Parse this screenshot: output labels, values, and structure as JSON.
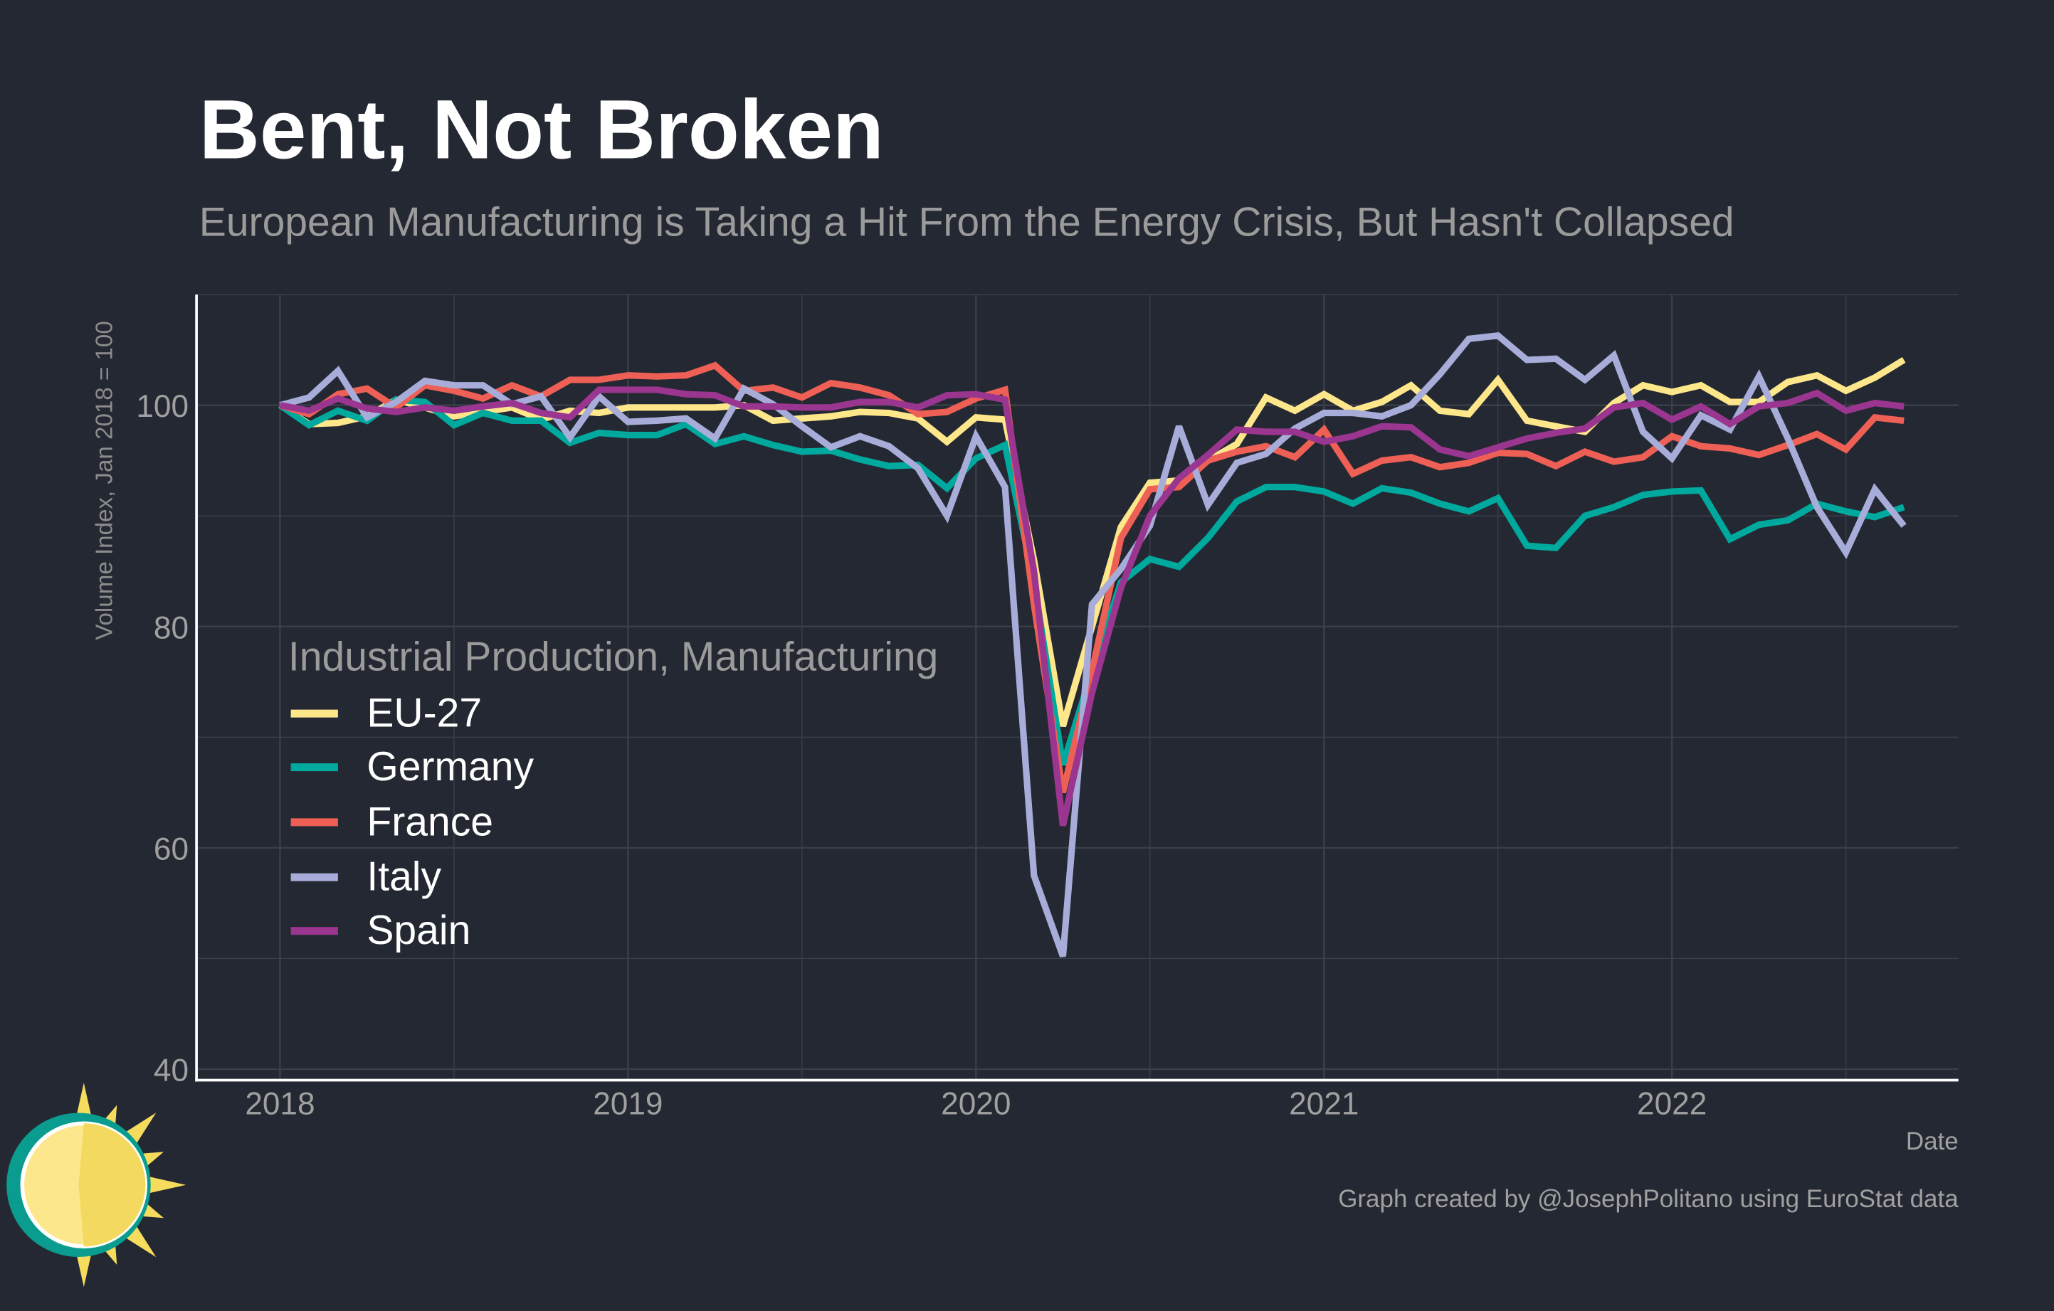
{
  "header": {
    "title": "Bent, Not Broken",
    "subtitle": "European Manufacturing is Taking a Hit From the Energy Crisis, But Hasn't Collapsed"
  },
  "caption": "Graph created by @JosephPolitano using EuroStat data",
  "colors": {
    "background": "#242832",
    "grid": "#3b3f49",
    "axis": "#ffffff"
  },
  "logo_icon": "sun-icon",
  "chart_data": {
    "type": "line",
    "title": "Bent, Not Broken",
    "xlabel": "Date",
    "ylabel": "Volume Index, Jan 2018 = 100",
    "x_ticks": [
      "2018",
      "2019",
      "2020",
      "2021",
      "2022"
    ],
    "y_ticks": [
      "40",
      "60",
      "80",
      "100"
    ],
    "ylim": [
      39,
      110
    ],
    "xlim": [
      "2017-10",
      "2022-11"
    ],
    "grid": true,
    "legend_title": "Industrial Production, Manufacturing",
    "legend_position": "left-middle",
    "x_start": "2018-01",
    "frequency": "monthly",
    "series": [
      {
        "name": "EU-27",
        "color": "#fee68b",
        "values": [
          100,
          98.3,
          98.4,
          99,
          100.5,
          99.8,
          99,
          99.4,
          99.8,
          98.7,
          99.5,
          99.3,
          99.8,
          99.8,
          99.8,
          99.8,
          100,
          98.6,
          98.8,
          99,
          99.4,
          99.3,
          98.8,
          96.7,
          98.9,
          98.7,
          86,
          71,
          80,
          89,
          93,
          93.2,
          95,
          96.5,
          100.7,
          99.5,
          101,
          99.5,
          100.3,
          101.8,
          99.5,
          99.2,
          102.3,
          98.6,
          98.1,
          97.6,
          100.2,
          101.8,
          101.2,
          101.8,
          100.3,
          100.3,
          102.1,
          102.7,
          101.3,
          102.5,
          104.1
        ]
      },
      {
        "name": "Germany",
        "color": "#00a99d",
        "values": [
          100,
          98.2,
          99.5,
          98.6,
          100.5,
          100.3,
          98.2,
          99.3,
          98.6,
          98.6,
          96.6,
          97.5,
          97.3,
          97.3,
          98.3,
          96.5,
          97.2,
          96.4,
          95.8,
          95.9,
          95.1,
          94.5,
          94.6,
          92.5,
          95.2,
          96.4,
          84,
          67.5,
          76,
          84,
          86.1,
          85.4,
          88,
          91.3,
          92.6,
          92.6,
          92.2,
          91.1,
          92.5,
          92.1,
          91.1,
          90.4,
          91.6,
          87.3,
          87.1,
          90,
          90.8,
          91.9,
          92.2,
          92.3,
          87.9,
          89.2,
          89.6,
          91.1,
          90.4,
          89.9,
          90.8
        ]
      },
      {
        "name": "France",
        "color": "#ee6055",
        "values": [
          100,
          99.2,
          101,
          101.5,
          99.8,
          101.8,
          101.3,
          100.6,
          101.8,
          100.8,
          102.3,
          102.3,
          102.7,
          102.6,
          102.7,
          103.6,
          101.3,
          101.6,
          100.7,
          102,
          101.6,
          100.9,
          99.2,
          99.4,
          100.6,
          101.4,
          82,
          65,
          76,
          88,
          92.4,
          92.6,
          95,
          95.8,
          96.3,
          95.3,
          97.8,
          93.8,
          95,
          95.3,
          94.4,
          94.8,
          95.7,
          95.6,
          94.5,
          95.8,
          94.9,
          95.3,
          97.2,
          96.3,
          96.1,
          95.5,
          96.4,
          97.4,
          96,
          98.9,
          98.6
        ]
      },
      {
        "name": "Italy",
        "color": "#a7acd9",
        "values": [
          100,
          100.7,
          103.1,
          98.9,
          100.3,
          102.2,
          101.8,
          101.8,
          100.1,
          100.8,
          97.1,
          100.8,
          98.5,
          98.6,
          98.8,
          97,
          101.5,
          100.1,
          98.1,
          96.2,
          97.2,
          96.3,
          94.3,
          90,
          97.2,
          92.6,
          57.5,
          50.2,
          82,
          85.2,
          89.1,
          98.1,
          91,
          94.8,
          95.6,
          97.9,
          99.3,
          99.3,
          99,
          100,
          102.8,
          106,
          106.3,
          104.1,
          104.2,
          102.3,
          104.5,
          97.6,
          95.2,
          99.1,
          97.8,
          102.6,
          97,
          90.8,
          86.7,
          92.4,
          89.1
        ]
      },
      {
        "name": "Spain",
        "color": "#9a3590",
        "values": [
          100,
          99.5,
          100.6,
          99.7,
          99.4,
          99.8,
          99.5,
          99.9,
          100.2,
          99.3,
          98.9,
          101.4,
          101.4,
          101.4,
          101,
          100.9,
          99.9,
          99.9,
          99.8,
          99.8,
          100.3,
          100.3,
          99.8,
          100.9,
          101,
          100.5,
          85,
          62,
          74,
          83.5,
          90,
          93.4,
          95.5,
          97.8,
          97.6,
          97.6,
          96.7,
          97.2,
          98.1,
          98,
          96,
          95.4,
          96.2,
          97,
          97.5,
          97.9,
          99.8,
          100.2,
          98.7,
          99.9,
          98.3,
          99.9,
          100.2,
          101.1,
          99.5,
          100.2,
          99.9
        ]
      }
    ]
  }
}
